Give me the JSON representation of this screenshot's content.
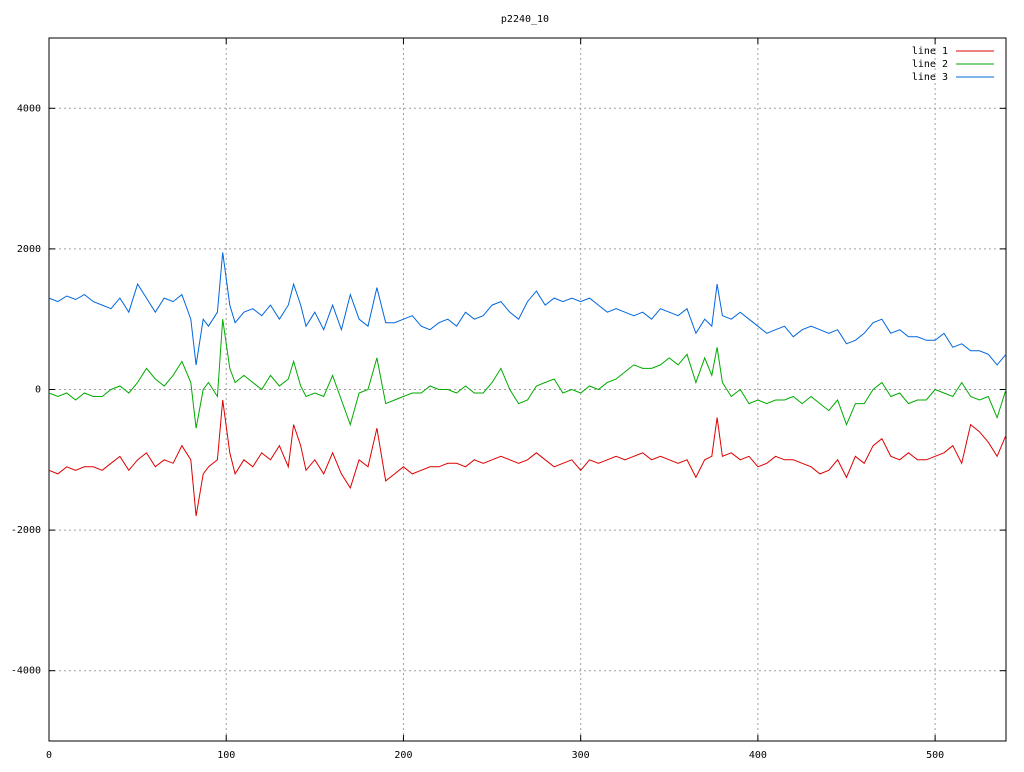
{
  "chart_data": {
    "type": "line",
    "title": "p2240_10",
    "x": [
      0,
      5,
      10,
      15,
      20,
      25,
      30,
      35,
      40,
      45,
      50,
      55,
      60,
      65,
      70,
      75,
      80,
      83,
      87,
      90,
      95,
      98,
      102,
      105,
      110,
      115,
      120,
      125,
      130,
      135,
      138,
      142,
      145,
      150,
      155,
      160,
      165,
      170,
      175,
      180,
      185,
      190,
      195,
      200,
      205,
      210,
      215,
      220,
      225,
      230,
      235,
      240,
      245,
      250,
      255,
      260,
      265,
      270,
      275,
      280,
      285,
      290,
      295,
      300,
      305,
      310,
      315,
      320,
      325,
      330,
      335,
      340,
      345,
      350,
      355,
      360,
      365,
      370,
      374,
      377,
      380,
      385,
      390,
      395,
      400,
      405,
      410,
      415,
      420,
      425,
      430,
      435,
      440,
      445,
      450,
      455,
      460,
      465,
      470,
      475,
      480,
      485,
      490,
      495,
      500,
      505,
      510,
      515,
      520,
      525,
      530,
      535,
      540
    ],
    "series": [
      {
        "name": "line 1",
        "color": "#dd0000",
        "values": [
          -1150,
          -1200,
          -1100,
          -1150,
          -1100,
          -1100,
          -1150,
          -1050,
          -950,
          -1150,
          -1000,
          -900,
          -1100,
          -1000,
          -1050,
          -800,
          -1000,
          -1800,
          -1200,
          -1100,
          -1000,
          -150,
          -900,
          -1200,
          -1000,
          -1100,
          -900,
          -1000,
          -800,
          -1100,
          -500,
          -800,
          -1150,
          -1000,
          -1200,
          -900,
          -1200,
          -1400,
          -1000,
          -1100,
          -550,
          -1300,
          -1200,
          -1100,
          -1200,
          -1150,
          -1100,
          -1100,
          -1050,
          -1050,
          -1100,
          -1000,
          -1050,
          -1000,
          -950,
          -1000,
          -1050,
          -1000,
          -900,
          -1000,
          -1100,
          -1050,
          -1000,
          -1150,
          -1000,
          -1050,
          -1000,
          -950,
          -1000,
          -950,
          -900,
          -1000,
          -950,
          -1000,
          -1050,
          -1000,
          -1250,
          -1000,
          -950,
          -400,
          -950,
          -900,
          -1000,
          -950,
          -1100,
          -1050,
          -950,
          -1000,
          -1000,
          -1050,
          -1100,
          -1200,
          -1150,
          -1000,
          -1250,
          -950,
          -1050,
          -800,
          -700,
          -950,
          -1000,
          -900,
          -1000,
          -1000,
          -950,
          -900,
          -800,
          -1050,
          -500,
          -600,
          -750,
          -950,
          -650
        ]
      },
      {
        "name": "line 2",
        "color": "#00aa00",
        "values": [
          -50,
          -100,
          -50,
          -150,
          -50,
          -100,
          -100,
          0,
          50,
          -50,
          100,
          300,
          150,
          50,
          200,
          400,
          100,
          -550,
          0,
          100,
          -100,
          1000,
          300,
          100,
          200,
          100,
          0,
          200,
          50,
          150,
          400,
          50,
          -100,
          -50,
          -100,
          200,
          -150,
          -500,
          -50,
          0,
          450,
          -200,
          -150,
          -100,
          -50,
          -50,
          50,
          0,
          0,
          -50,
          50,
          -50,
          -50,
          100,
          300,
          0,
          -200,
          -150,
          50,
          100,
          150,
          -50,
          0,
          -50,
          50,
          0,
          100,
          150,
          250,
          350,
          300,
          300,
          350,
          450,
          350,
          500,
          100,
          450,
          200,
          600,
          100,
          -100,
          0,
          -200,
          -150,
          -200,
          -150,
          -150,
          -100,
          -200,
          -100,
          -200,
          -300,
          -150,
          -500,
          -200,
          -200,
          0,
          100,
          -100,
          -50,
          -200,
          -150,
          -150,
          0,
          -50,
          -100,
          100,
          -100,
          -150,
          -100,
          -400,
          0
        ]
      },
      {
        "name": "line 3",
        "color": "#0066dd",
        "values": [
          1300,
          1250,
          1330,
          1280,
          1350,
          1250,
          1200,
          1150,
          1300,
          1100,
          1500,
          1300,
          1100,
          1300,
          1250,
          1350,
          1000,
          350,
          1000,
          900,
          1100,
          1950,
          1200,
          950,
          1100,
          1150,
          1050,
          1200,
          1000,
          1200,
          1500,
          1200,
          900,
          1100,
          850,
          1200,
          850,
          1350,
          1000,
          900,
          1450,
          950,
          950,
          1000,
          1050,
          900,
          850,
          950,
          1000,
          900,
          1100,
          1000,
          1050,
          1200,
          1250,
          1100,
          1000,
          1250,
          1400,
          1200,
          1300,
          1250,
          1300,
          1250,
          1300,
          1200,
          1100,
          1150,
          1100,
          1050,
          1100,
          1000,
          1150,
          1100,
          1050,
          1150,
          800,
          1000,
          900,
          1500,
          1050,
          1000,
          1100,
          1000,
          900,
          800,
          850,
          900,
          750,
          850,
          900,
          850,
          800,
          850,
          650,
          700,
          800,
          950,
          1000,
          800,
          850,
          750,
          750,
          700,
          700,
          800,
          600,
          650,
          550,
          550,
          500,
          350,
          500
        ]
      }
    ],
    "xlim": [
      0,
      540
    ],
    "ylim": [
      -5000,
      5000
    ],
    "xticks": [
      0,
      100,
      200,
      300,
      400,
      500
    ],
    "yticks": [
      -4000,
      -2000,
      0,
      2000,
      4000
    ],
    "grid": true,
    "legend": "top-right"
  }
}
